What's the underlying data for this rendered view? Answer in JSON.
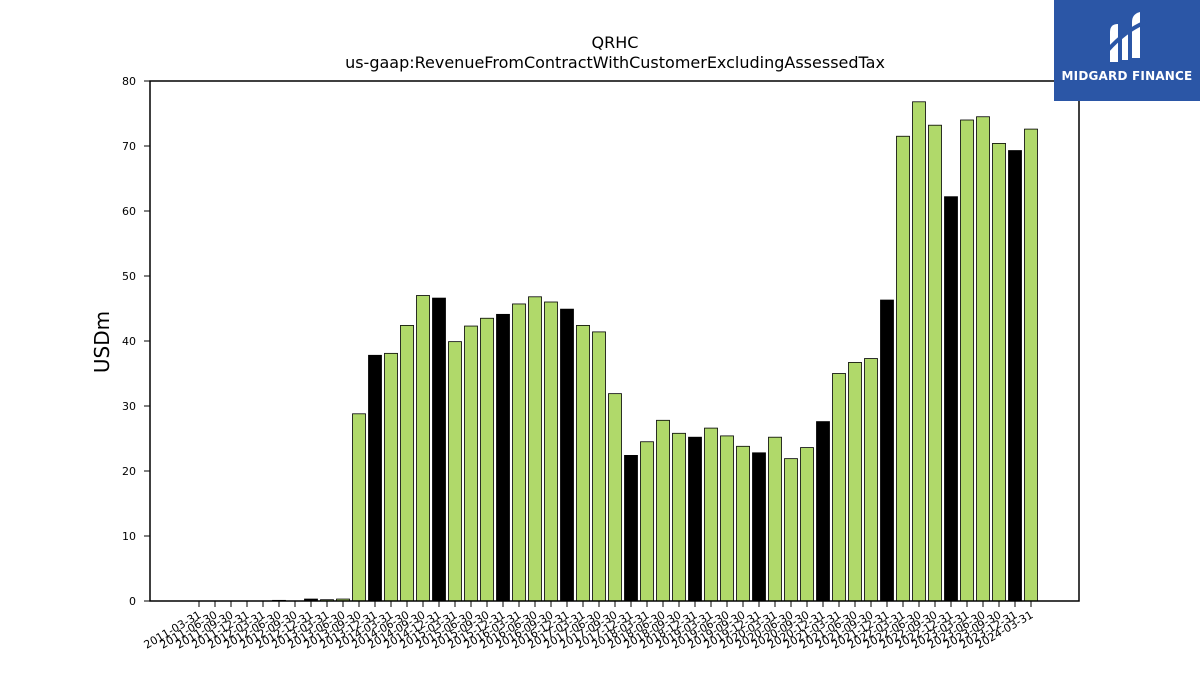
{
  "chart_data": {
    "type": "bar",
    "title": "QRHC",
    "subtitle": "us-gaap:RevenueFromContractWithCustomerExcludingAssessedTax",
    "ylabel": "USDm",
    "xlabel": "",
    "ylim": [
      0,
      80
    ],
    "yticks": [
      0,
      10,
      20,
      30,
      40,
      50,
      60,
      70,
      80
    ],
    "grid": false,
    "colors": {
      "quarter": "#b0d96a",
      "fiscal_year_end": "#000000",
      "edge": "#000000"
    },
    "categories": [
      "2011-03-31",
      "2011-06-30",
      "2011-09-30",
      "2011-12-31",
      "2012-03-31",
      "2012-06-30",
      "2012-09-30",
      "2012-12-31",
      "2013-03-31",
      "2013-06-30",
      "2013-09-30",
      "2013-12-31",
      "2014-03-31",
      "2014-06-30",
      "2014-09-30",
      "2014-12-31",
      "2015-03-31",
      "2015-06-30",
      "2015-09-30",
      "2015-12-31",
      "2016-03-31",
      "2016-06-30",
      "2016-09-30",
      "2016-12-31",
      "2017-03-31",
      "2017-06-30",
      "2017-09-30",
      "2017-12-31",
      "2018-03-31",
      "2018-06-30",
      "2018-09-30",
      "2018-12-31",
      "2019-03-31",
      "2019-06-30",
      "2019-09-30",
      "2019-12-31",
      "2020-03-31",
      "2020-06-30",
      "2020-09-30",
      "2020-12-31",
      "2021-03-31",
      "2021-06-30",
      "2021-09-30",
      "2021-12-31",
      "2022-03-31",
      "2022-06-30",
      "2022-09-30",
      "2022-12-31",
      "2023-03-31",
      "2023-06-30",
      "2023-09-30",
      "2023-12-31",
      "2024-03-31"
    ],
    "values": [
      0.0,
      0.0,
      0.0,
      0.0,
      0.0,
      0.1,
      0.0,
      0.3,
      0.2,
      0.3,
      28.8,
      37.8,
      38.1,
      42.4,
      47.0,
      46.6,
      39.9,
      42.3,
      43.5,
      44.1,
      45.7,
      46.8,
      46.0,
      44.9,
      42.4,
      41.4,
      31.9,
      22.4,
      24.5,
      27.8,
      25.8,
      25.2,
      26.6,
      25.4,
      23.8,
      22.8,
      25.2,
      21.9,
      23.6,
      27.6,
      35.0,
      36.7,
      37.3,
      46.3,
      71.5,
      76.8,
      73.2,
      62.2,
      74.0,
      74.5,
      70.4,
      69.3,
      72.6
    ],
    "highlight": [
      false,
      false,
      false,
      true,
      false,
      false,
      false,
      true,
      false,
      false,
      false,
      true,
      false,
      false,
      false,
      true,
      false,
      false,
      false,
      true,
      false,
      false,
      false,
      true,
      false,
      false,
      false,
      true,
      false,
      false,
      false,
      true,
      false,
      false,
      false,
      true,
      false,
      false,
      false,
      true,
      false,
      false,
      false,
      true,
      false,
      false,
      false,
      true,
      false,
      false,
      false,
      true,
      false
    ]
  },
  "logo": {
    "text": "MIDGARD FINANCE"
  }
}
